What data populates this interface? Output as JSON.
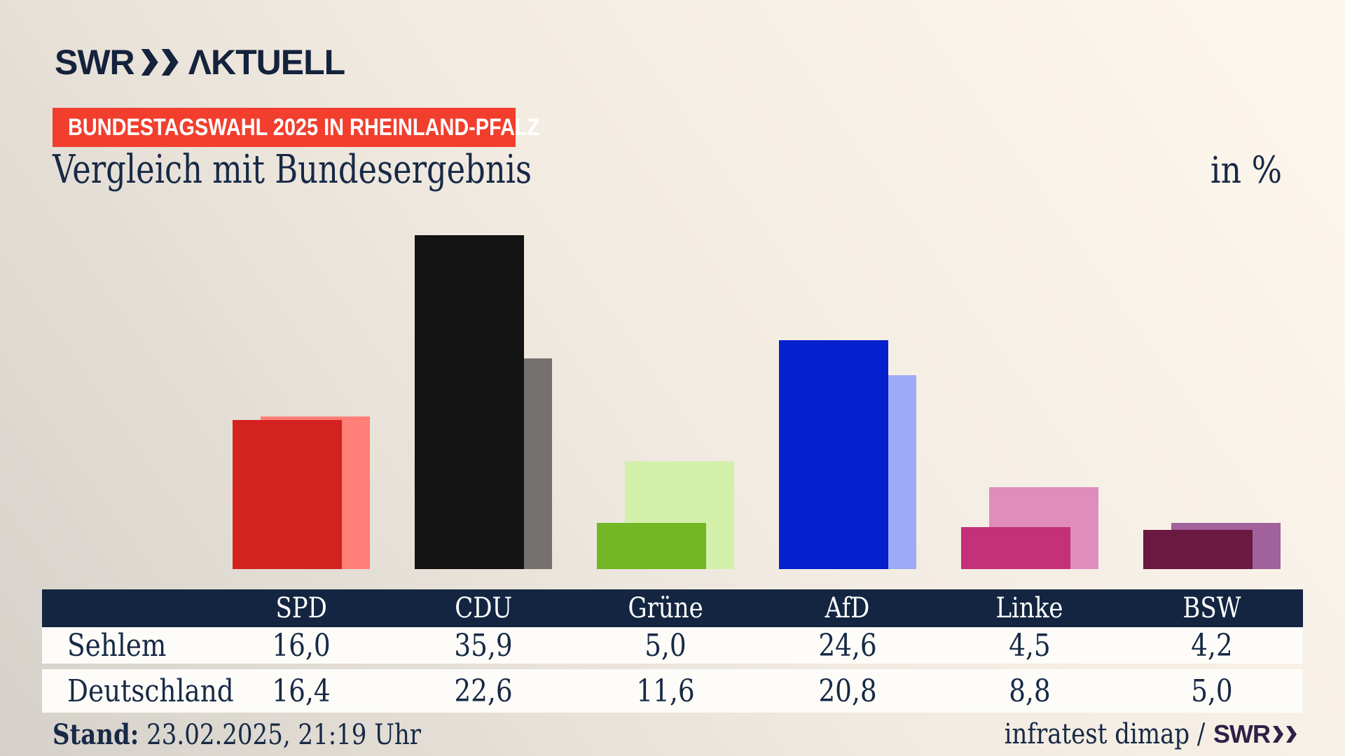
{
  "brand": {
    "logo_swr": "SWR",
    "logo_aktuell": "ΛKTUELL"
  },
  "badge": {
    "text": "BUNDESTAGSWAHL 2025 IN RHEINLAND-PFALZ",
    "bg": "#f23e2d"
  },
  "title": "Vergleich mit Bundesergebnis",
  "unit_label": "in %",
  "chart_data": {
    "type": "bar",
    "categories": [
      "SPD",
      "CDU",
      "Grüne",
      "AfD",
      "Linke",
      "BSW"
    ],
    "series": [
      {
        "name": "Sehlem",
        "values": [
          16.0,
          35.9,
          5.0,
          24.6,
          4.5,
          4.2
        ]
      },
      {
        "name": "Deutschland",
        "values": [
          16.4,
          22.6,
          11.6,
          20.8,
          8.8,
          5.0
        ]
      }
    ],
    "series_colors": {
      "Sehlem": [
        "#d42220",
        "#131313",
        "#73b724",
        "#0520cd",
        "#c23179",
        "#6a1941"
      ],
      "Deutschland": [
        "#ff7e77",
        "#747170",
        "#d3f0ab",
        "#9daaf7",
        "#e08cbd",
        "#a1619a"
      ]
    },
    "title": "Vergleich mit Bundesergebnis",
    "xlabel": "",
    "ylabel": "in %",
    "ylim": [
      0,
      37
    ],
    "grid": false,
    "legend_position": "table-below",
    "value_format": "decimal-comma"
  },
  "table": {
    "columns": [
      "SPD",
      "CDU",
      "Grüne",
      "AfD",
      "Linke",
      "BSW"
    ],
    "rows": [
      {
        "label": "Sehlem",
        "values": [
          "16,0",
          "35,9",
          "5,0",
          "24,6",
          "4,5",
          "4,2"
        ]
      },
      {
        "label": "Deutschland",
        "values": [
          "16,4",
          "22,6",
          "11,6",
          "20,8",
          "8,8",
          "5,0"
        ]
      }
    ]
  },
  "footer": {
    "stand_label": "Stand:",
    "stand_value": " 23.02.2025, 21:19 Uhr",
    "source_text": "infratest dimap /",
    "source_logo": "SWR"
  },
  "colors": {
    "navy": "#15223c",
    "header_bg": "#132541",
    "badge_red": "#f23e2d",
    "row_bg": "#fdfcf8",
    "background_light": "#fcf5eb",
    "background_dark": "#d5d1ca"
  }
}
